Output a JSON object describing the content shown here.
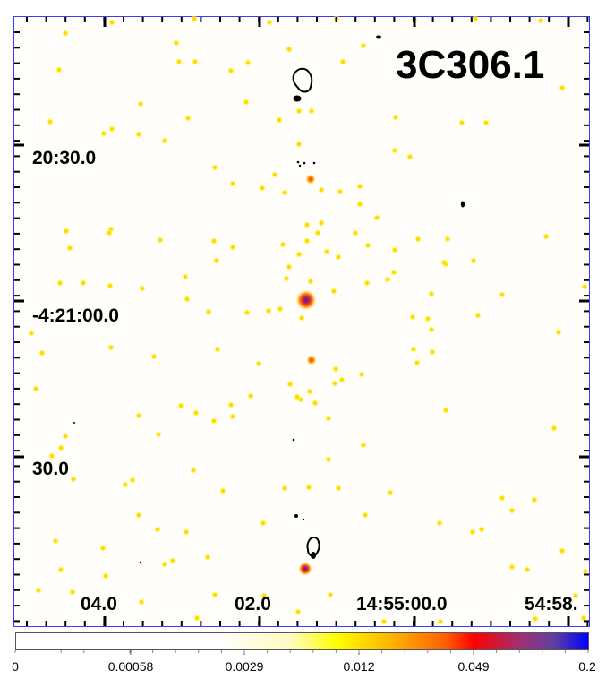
{
  "image": {
    "title": "3C306.1",
    "ra_labels": [
      "04.0",
      "02.0",
      "14:55:00.0",
      "54:58."
    ],
    "dec_labels": [
      "20:30.0",
      "-4:21:00.0",
      "30.0"
    ]
  },
  "colorbar": {
    "tick_labels": [
      "0",
      "0.00058",
      "0.0029",
      "0.012",
      "0.049",
      "0.2"
    ],
    "colors": [
      "#ffffff",
      "#ffff00",
      "#ffa500",
      "#ff0000",
      "#8b3a8b",
      "#0000ff"
    ]
  },
  "colors": {
    "frame": "#3a3aff",
    "source_yellow": "#ffe000",
    "source_core": "#ff3a10",
    "contour": "#000000"
  }
}
